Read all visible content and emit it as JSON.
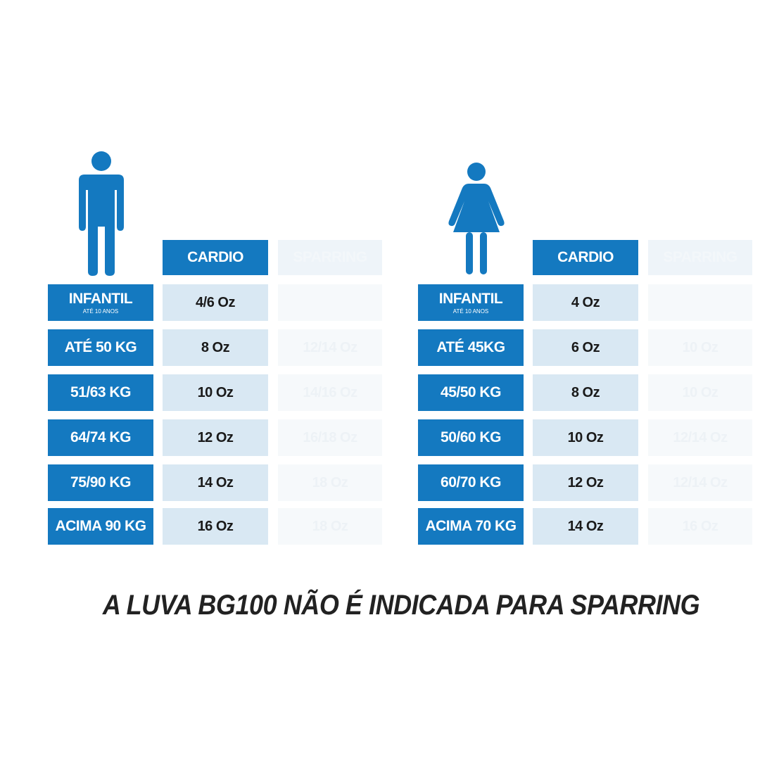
{
  "colors": {
    "blue": "#1479c0",
    "light_blue": "#d9e8f3",
    "text_dark": "#1a1a1a"
  },
  "men": {
    "icon": "male-person-icon",
    "header_cardio": "CARDIO",
    "header_faded": "SPARRING",
    "rows": [
      {
        "label": "INFANTIL",
        "sub": "ATÉ 10 ANOS",
        "cardio": "4/6 Oz",
        "faded": ""
      },
      {
        "label": "ATÉ 50 KG",
        "sub": "",
        "cardio": "8 Oz",
        "faded": "12/14 Oz"
      },
      {
        "label": "51/63 KG",
        "sub": "",
        "cardio": "10 Oz",
        "faded": "14/16 Oz"
      },
      {
        "label": "64/74 KG",
        "sub": "",
        "cardio": "12 Oz",
        "faded": "16/18 Oz"
      },
      {
        "label": "75/90 KG",
        "sub": "",
        "cardio": "14 Oz",
        "faded": "18 Oz"
      },
      {
        "label": "ACIMA 90 KG",
        "sub": "",
        "cardio": "16 Oz",
        "faded": "18 Oz"
      }
    ]
  },
  "women": {
    "icon": "female-person-icon",
    "header_cardio": "CARDIO",
    "header_faded": "SPARRING",
    "rows": [
      {
        "label": "INFANTIL",
        "sub": "ATÉ 10 ANOS",
        "cardio": "4 Oz",
        "faded": ""
      },
      {
        "label": "ATÉ 45KG",
        "sub": "",
        "cardio": "6 Oz",
        "faded": "10 Oz"
      },
      {
        "label": "45/50 KG",
        "sub": "",
        "cardio": "8 Oz",
        "faded": "10 Oz"
      },
      {
        "label": "50/60 KG",
        "sub": "",
        "cardio": "10 Oz",
        "faded": "12/14 Oz"
      },
      {
        "label": "60/70 KG",
        "sub": "",
        "cardio": "12 Oz",
        "faded": "12/14 Oz"
      },
      {
        "label": "ACIMA 70 KG",
        "sub": "",
        "cardio": "14 Oz",
        "faded": "16 Oz"
      }
    ]
  },
  "footer": "A LUVA BG100 NÃO É INDICADA PARA SPARRING"
}
